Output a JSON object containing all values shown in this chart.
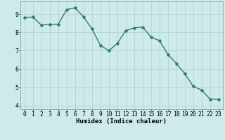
{
  "x": [
    0,
    1,
    2,
    3,
    4,
    5,
    6,
    7,
    8,
    9,
    10,
    11,
    12,
    13,
    14,
    15,
    16,
    17,
    18,
    19,
    20,
    21,
    22,
    23
  ],
  "y": [
    8.8,
    8.85,
    8.4,
    8.45,
    8.45,
    9.25,
    9.35,
    8.85,
    8.2,
    7.3,
    7.0,
    7.4,
    8.1,
    8.25,
    8.3,
    7.75,
    7.55,
    6.8,
    6.3,
    5.75,
    5.05,
    4.85,
    4.35,
    4.35
  ],
  "line_color": "#2e7d6e",
  "marker": "o",
  "markersize": 2.2,
  "linewidth": 1.0,
  "bg_color": "#ceeaea",
  "grid_color": "#b0d4d4",
  "xlabel": "Humidex (Indice chaleur)",
  "xlim": [
    -0.5,
    23.5
  ],
  "ylim": [
    3.8,
    9.7
  ],
  "yticks": [
    4,
    5,
    6,
    7,
    8,
    9
  ],
  "xticks": [
    0,
    1,
    2,
    3,
    4,
    5,
    6,
    7,
    8,
    9,
    10,
    11,
    12,
    13,
    14,
    15,
    16,
    17,
    18,
    19,
    20,
    21,
    22,
    23
  ],
  "xlabel_fontsize": 6.5,
  "tick_fontsize": 5.8
}
